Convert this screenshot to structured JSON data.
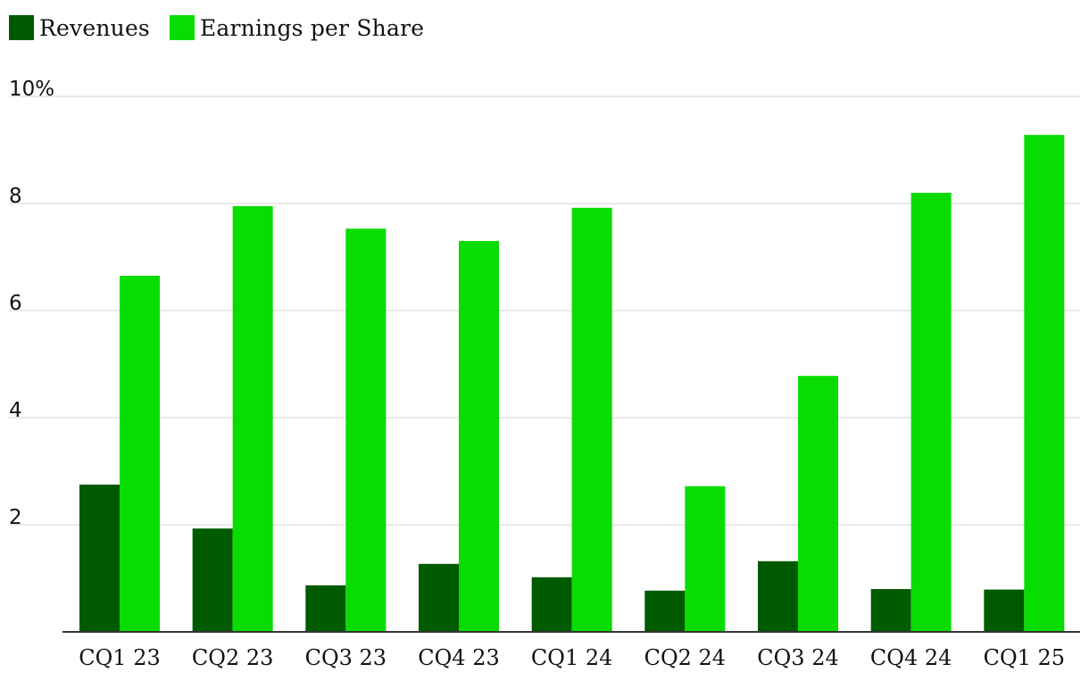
{
  "chart_data": {
    "type": "bar",
    "categories": [
      "CQ1 23",
      "CQ2 23",
      "CQ3 23",
      "CQ4 23",
      "CQ1 24",
      "CQ2 24",
      "CQ3 24",
      "CQ4 24",
      "CQ1 25"
    ],
    "series": [
      {
        "name": "Revenues",
        "color": "#005a00",
        "values": [
          2.75,
          1.93,
          0.87,
          1.27,
          1.02,
          0.77,
          1.32,
          0.8,
          0.79
        ]
      },
      {
        "name": "Earnings per Share",
        "color": "#08dc00",
        "values": [
          6.65,
          7.95,
          7.53,
          7.3,
          7.92,
          2.72,
          4.78,
          8.2,
          9.28
        ]
      }
    ],
    "y_ticks": [
      {
        "value": 2,
        "label": "2"
      },
      {
        "value": 4,
        "label": "4"
      },
      {
        "value": 6,
        "label": "6"
      },
      {
        "value": 8,
        "label": "8"
      },
      {
        "value": 10,
        "label": "10%"
      }
    ],
    "title": "",
    "xlabel": "",
    "ylabel": "",
    "ylim": [
      0,
      10
    ],
    "grid": true,
    "legend_position": "top-left"
  }
}
